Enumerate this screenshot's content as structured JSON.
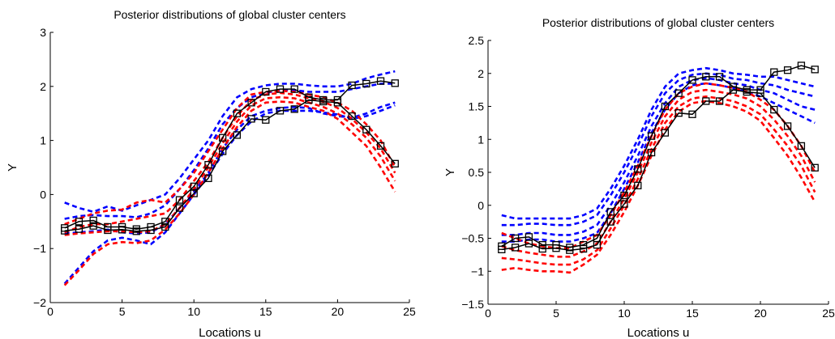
{
  "chart_data": [
    {
      "type": "line",
      "title": "Posterior distributions of global cluster centers",
      "xlabel": "Locations u",
      "ylabel": "Y",
      "xlim": [
        0,
        25
      ],
      "ylim": [
        -2,
        3
      ],
      "xticks": [
        "0",
        "5",
        "10",
        "15",
        "20",
        "25"
      ],
      "yticks": [
        "−2",
        "−1",
        "0",
        "1",
        "2",
        "3"
      ],
      "x": [
        1,
        2,
        3,
        4,
        5,
        6,
        7,
        8,
        9,
        10,
        11,
        12,
        13,
        14,
        15,
        16,
        17,
        18,
        19,
        20,
        21,
        22,
        23,
        24
      ],
      "colors": {
        "red": "#ff0000",
        "blue": "#0000ff",
        "black": "#000000"
      },
      "series": [
        {
          "color": "black",
          "style": "solid-square",
          "values": [
            -0.62,
            -0.5,
            -0.48,
            -0.6,
            -0.6,
            -0.64,
            -0.6,
            -0.5,
            -0.1,
            0.15,
            0.55,
            1.05,
            1.5,
            1.7,
            1.9,
            1.95,
            1.95,
            1.8,
            1.75,
            1.75,
            2.02,
            2.05,
            2.1,
            2.06
          ]
        },
        {
          "color": "black",
          "style": "solid-square",
          "values": [
            -0.67,
            -0.64,
            -0.58,
            -0.66,
            -0.65,
            -0.68,
            -0.66,
            -0.6,
            -0.25,
            0.02,
            0.3,
            0.8,
            1.1,
            1.4,
            1.38,
            1.55,
            1.58,
            1.75,
            1.72,
            1.7,
            1.45,
            1.2,
            0.9,
            0.57
          ]
        },
        {
          "color": "blue",
          "style": "dashed",
          "values": [
            -0.15,
            -0.25,
            -0.32,
            -0.22,
            -0.3,
            -0.2,
            -0.1,
            0.0,
            0.3,
            0.65,
            1.0,
            1.45,
            1.8,
            1.95,
            2.02,
            2.05,
            2.05,
            2.02,
            2.0,
            2.0,
            2.05,
            2.15,
            2.22,
            2.28
          ]
        },
        {
          "color": "blue",
          "style": "dashed",
          "values": [
            -0.45,
            -0.4,
            -0.38,
            -0.4,
            -0.4,
            -0.42,
            -0.35,
            -0.2,
            0.1,
            0.45,
            0.85,
            1.3,
            1.6,
            1.8,
            1.88,
            1.93,
            1.93,
            1.9,
            1.9,
            1.9,
            1.95,
            2.0,
            2.05,
            2.05
          ]
        },
        {
          "color": "blue",
          "style": "dashed",
          "values": [
            -0.72,
            -0.7,
            -0.68,
            -0.65,
            -0.7,
            -0.72,
            -0.7,
            -0.55,
            -0.25,
            0.05,
            0.4,
            0.85,
            1.2,
            1.45,
            1.55,
            1.6,
            1.62,
            1.6,
            1.5,
            1.45,
            1.42,
            1.5,
            1.62,
            1.7
          ]
        },
        {
          "color": "blue",
          "style": "dashed",
          "values": [
            -1.65,
            -1.35,
            -1.05,
            -0.85,
            -0.8,
            -0.85,
            -0.92,
            -0.7,
            -0.35,
            0.0,
            0.35,
            0.75,
            1.1,
            1.35,
            1.5,
            1.55,
            1.55,
            1.55,
            1.52,
            1.48,
            1.4,
            1.45,
            1.55,
            1.65
          ]
        },
        {
          "color": "red",
          "style": "dashed",
          "values": [
            -0.55,
            -0.45,
            -0.35,
            -0.3,
            -0.28,
            -0.15,
            -0.1,
            -0.15,
            0.1,
            0.4,
            0.8,
            1.2,
            1.6,
            1.85,
            1.9,
            1.92,
            1.9,
            1.85,
            1.8,
            1.7,
            1.55,
            1.3,
            1.0,
            0.5
          ]
        },
        {
          "color": "red",
          "style": "dashed",
          "values": [
            -0.7,
            -0.6,
            -0.55,
            -0.55,
            -0.5,
            -0.45,
            -0.4,
            -0.35,
            -0.1,
            0.25,
            0.6,
            1.05,
            1.45,
            1.75,
            1.85,
            1.88,
            1.85,
            1.78,
            1.72,
            1.6,
            1.4,
            1.15,
            0.85,
            0.4
          ]
        },
        {
          "color": "red",
          "style": "dashed",
          "values": [
            -0.75,
            -0.72,
            -0.7,
            -0.68,
            -0.68,
            -0.7,
            -0.68,
            -0.55,
            -0.25,
            0.1,
            0.5,
            0.95,
            1.35,
            1.65,
            1.78,
            1.8,
            1.78,
            1.7,
            1.62,
            1.5,
            1.3,
            1.05,
            0.7,
            0.25
          ]
        },
        {
          "color": "red",
          "style": "dashed",
          "values": [
            -1.68,
            -1.4,
            -1.1,
            -0.92,
            -0.88,
            -0.9,
            -0.85,
            -0.65,
            -0.35,
            0.0,
            0.4,
            0.85,
            1.25,
            1.55,
            1.7,
            1.72,
            1.7,
            1.62,
            1.55,
            1.4,
            1.15,
            0.9,
            0.5,
            0.05
          ]
        }
      ]
    },
    {
      "type": "line",
      "title": "Posterior distributions of global cluster centers",
      "xlabel": "Locations u",
      "ylabel": "Y",
      "xlim": [
        0,
        25
      ],
      "ylim": [
        -1.5,
        2.5
      ],
      "xticks": [
        "0",
        "5",
        "10",
        "15",
        "20",
        "25"
      ],
      "yticks": [
        "−1.5",
        "−1",
        "−0.5",
        "0",
        "0.5",
        "1",
        "1.5",
        "2",
        "2.5"
      ],
      "x": [
        1,
        2,
        3,
        4,
        5,
        6,
        7,
        8,
        9,
        10,
        11,
        12,
        13,
        14,
        15,
        16,
        17,
        18,
        19,
        20,
        21,
        22,
        23,
        24
      ],
      "colors": {
        "red": "#ff0000",
        "blue": "#0000ff",
        "black": "#000000"
      },
      "series": [
        {
          "color": "black",
          "style": "solid-square",
          "values": [
            -0.62,
            -0.5,
            -0.48,
            -0.6,
            -0.6,
            -0.64,
            -0.6,
            -0.5,
            -0.1,
            0.15,
            0.55,
            1.05,
            1.5,
            1.7,
            1.9,
            1.95,
            1.95,
            1.8,
            1.75,
            1.75,
            2.02,
            2.05,
            2.12,
            2.06
          ]
        },
        {
          "color": "black",
          "style": "solid-square",
          "values": [
            -0.67,
            -0.64,
            -0.58,
            -0.66,
            -0.65,
            -0.68,
            -0.66,
            -0.6,
            -0.25,
            0.02,
            0.3,
            0.8,
            1.1,
            1.4,
            1.38,
            1.58,
            1.58,
            1.75,
            1.72,
            1.7,
            1.45,
            1.2,
            0.9,
            0.57
          ]
        },
        {
          "color": "blue",
          "style": "dashed",
          "values": [
            -0.15,
            -0.2,
            -0.2,
            -0.2,
            -0.2,
            -0.2,
            -0.15,
            -0.05,
            0.25,
            0.6,
            1.0,
            1.45,
            1.8,
            2.0,
            2.05,
            2.08,
            2.05,
            2.0,
            1.98,
            1.95,
            1.95,
            1.9,
            1.85,
            1.8
          ]
        },
        {
          "color": "blue",
          "style": "dashed",
          "values": [
            -0.3,
            -0.3,
            -0.28,
            -0.28,
            -0.3,
            -0.3,
            -0.25,
            -0.15,
            0.15,
            0.5,
            0.9,
            1.35,
            1.7,
            1.9,
            1.98,
            2.0,
            1.98,
            1.92,
            1.9,
            1.85,
            1.82,
            1.75,
            1.7,
            1.65
          ]
        },
        {
          "color": "blue",
          "style": "dashed",
          "values": [
            -0.45,
            -0.45,
            -0.42,
            -0.42,
            -0.45,
            -0.45,
            -0.4,
            -0.3,
            0.0,
            0.35,
            0.75,
            1.2,
            1.55,
            1.8,
            1.9,
            1.93,
            1.9,
            1.85,
            1.82,
            1.75,
            1.7,
            1.6,
            1.5,
            1.45
          ]
        },
        {
          "color": "blue",
          "style": "dashed",
          "values": [
            -0.55,
            -0.55,
            -0.52,
            -0.52,
            -0.55,
            -0.55,
            -0.5,
            -0.42,
            -0.12,
            0.25,
            0.65,
            1.1,
            1.45,
            1.7,
            1.82,
            1.85,
            1.82,
            1.78,
            1.72,
            1.65,
            1.55,
            1.45,
            1.35,
            1.25
          ]
        },
        {
          "color": "red",
          "style": "dashed",
          "values": [
            -0.42,
            -0.5,
            -0.58,
            -0.62,
            -0.65,
            -0.65,
            -0.55,
            -0.45,
            -0.15,
            0.2,
            0.6,
            1.05,
            1.45,
            1.7,
            1.8,
            1.85,
            1.82,
            1.78,
            1.72,
            1.6,
            1.45,
            1.2,
            0.9,
            0.5
          ]
        },
        {
          "color": "red",
          "style": "dashed",
          "values": [
            -0.62,
            -0.68,
            -0.72,
            -0.75,
            -0.78,
            -0.78,
            -0.7,
            -0.58,
            -0.25,
            0.1,
            0.5,
            0.95,
            1.35,
            1.6,
            1.72,
            1.75,
            1.72,
            1.68,
            1.62,
            1.5,
            1.3,
            1.05,
            0.75,
            0.35
          ]
        },
        {
          "color": "red",
          "style": "dashed",
          "values": [
            -0.8,
            -0.82,
            -0.85,
            -0.88,
            -0.9,
            -0.9,
            -0.82,
            -0.68,
            -0.35,
            0.0,
            0.4,
            0.85,
            1.25,
            1.5,
            1.62,
            1.65,
            1.62,
            1.58,
            1.5,
            1.38,
            1.15,
            0.9,
            0.6,
            0.2
          ]
        },
        {
          "color": "red",
          "style": "dashed",
          "values": [
            -0.98,
            -0.95,
            -0.98,
            -1.0,
            -1.0,
            -1.02,
            -0.9,
            -0.75,
            -0.45,
            -0.1,
            0.3,
            0.75,
            1.15,
            1.42,
            1.55,
            1.58,
            1.55,
            1.5,
            1.42,
            1.28,
            1.02,
            0.75,
            0.42,
            0.05
          ]
        }
      ]
    }
  ]
}
